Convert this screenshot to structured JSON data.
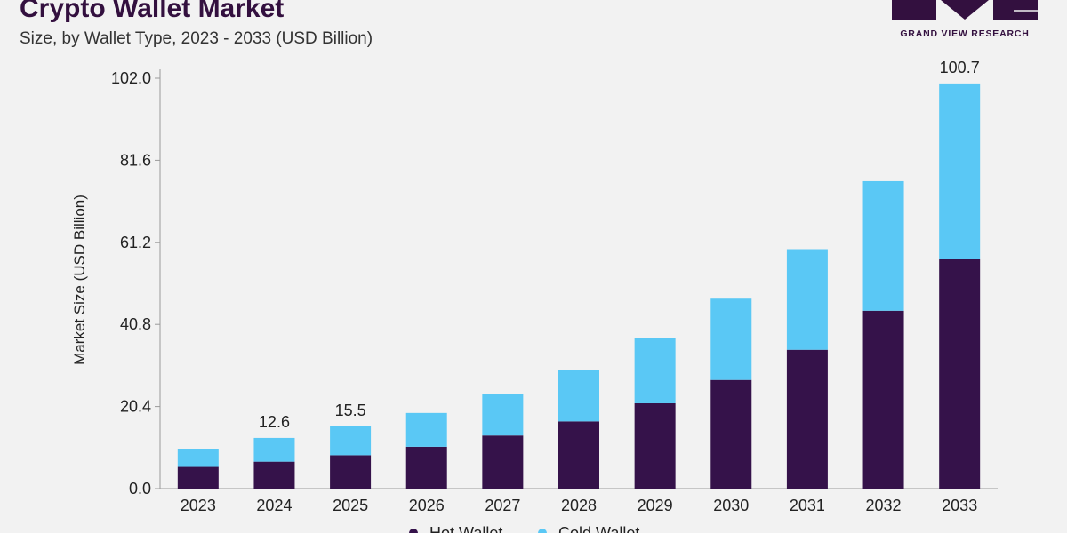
{
  "header": {
    "title": "Crypto Wallet Market",
    "subtitle": "Size, by Wallet Type, 2023 - 2033 (USD Billion)"
  },
  "logo": {
    "text": "GRAND VIEW RESEARCH"
  },
  "colors": {
    "hot": "#35124a",
    "cold": "#5ac8f5",
    "title": "#33103f"
  },
  "chart_data": {
    "type": "bar",
    "stacked": true,
    "categories": [
      "2023",
      "2024",
      "2025",
      "2026",
      "2027",
      "2028",
      "2029",
      "2030",
      "2031",
      "2032",
      "2033"
    ],
    "series": [
      {
        "name": "Hot Wallet",
        "values": [
          5.4,
          6.7,
          8.3,
          10.4,
          13.2,
          16.7,
          21.2,
          27.0,
          34.5,
          44.2,
          57.1
        ]
      },
      {
        "name": "Cold Wallet",
        "values": [
          4.5,
          5.9,
          7.2,
          8.4,
          10.3,
          12.8,
          16.3,
          20.2,
          25.0,
          32.2,
          43.6
        ]
      }
    ],
    "data_labels": [
      {
        "category": "2024",
        "text": "12.6"
      },
      {
        "category": "2025",
        "text": "15.5"
      },
      {
        "category": "2033",
        "text": "100.7"
      }
    ],
    "ylabel": "Market Size (USD Billion)",
    "xlabel": "",
    "yticks": [
      "0.0",
      "20.4",
      "40.8",
      "61.2",
      "81.6",
      "102.0"
    ],
    "ylim": [
      0,
      102.0
    ],
    "grid": false,
    "legend_position": "bottom",
    "legend_labels": [
      "Hot Wallet",
      "Cold Wallet"
    ]
  }
}
